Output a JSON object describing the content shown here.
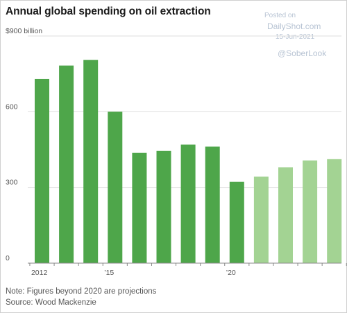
{
  "title": "Annual global spending on oil extraction",
  "watermark": {
    "posted": "Posted on",
    "site": "DailyShot.com",
    "date": "15-Jun-2021",
    "handle": "@SoberLook"
  },
  "notes": {
    "note": "Note: Figures beyond 2020 are projections",
    "source": "Source: Wood Mackenzie"
  },
  "colors": {
    "actual": "#4ea64a",
    "projection": "#a3d393",
    "grid": "#dddddd",
    "axis": "#888888",
    "text": "#555555"
  },
  "chart_data": {
    "type": "bar",
    "title": "Annual global spending on oil extraction",
    "ylabel": "$900 billion",
    "ylim": [
      0,
      900
    ],
    "yticks": [
      {
        "value": 0,
        "label": "0"
      },
      {
        "value": 300,
        "label": "300"
      },
      {
        "value": 600,
        "label": "600"
      },
      {
        "value": 900,
        "label": "$900 billion"
      }
    ],
    "categories": [
      2012,
      2013,
      2014,
      2015,
      2016,
      2017,
      2018,
      2019,
      2020,
      2021,
      2022,
      2023,
      2024
    ],
    "x_tick_labels": [
      {
        "category": 2012,
        "label": "2012"
      },
      {
        "category": 2015,
        "label": "’15"
      },
      {
        "category": 2020,
        "label": "’20"
      }
    ],
    "values": [
      730,
      783,
      805,
      600,
      437,
      445,
      470,
      462,
      322,
      343,
      380,
      407,
      412
    ],
    "projected": [
      false,
      false,
      false,
      false,
      false,
      false,
      false,
      false,
      false,
      true,
      true,
      true,
      true
    ],
    "grid": true
  }
}
